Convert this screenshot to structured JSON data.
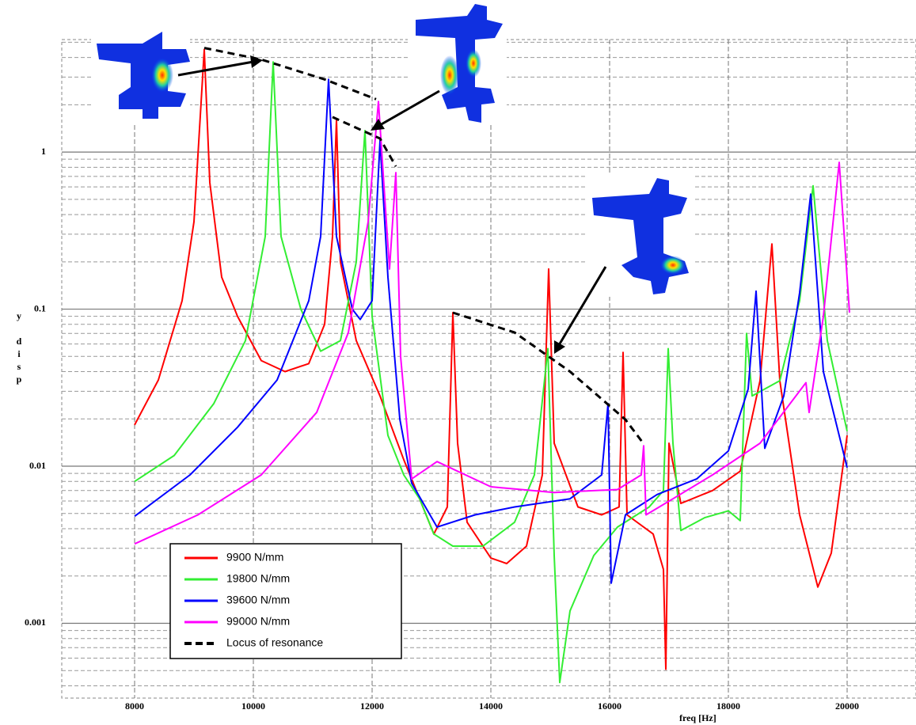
{
  "chart_data": {
    "type": "line",
    "x_label": "freq [Hz]",
    "y_label": "y disp",
    "y_log": true,
    "grid": true,
    "minor_grid": true,
    "legend": "lower left",
    "xlim": [
      6773,
      21160
    ],
    "ylim": [
      0.000334,
      5.2
    ],
    "xticks": [
      8000,
      10000,
      12000,
      14000,
      16000,
      18000,
      20000
    ],
    "yticks": [
      1,
      0.1,
      0.01,
      0.001
    ],
    "series": [
      {
        "name": "9900 N/mm",
        "color": "#ff0000",
        "dashed": false,
        "x": [
          8000,
          8400,
          8800,
          9000,
          9173,
          9267,
          9467,
          9733,
          10133,
          10533,
          10933,
          11200,
          11333,
          11400,
          11467,
          11733,
          12133,
          12533,
          12800,
          13040,
          13267,
          13360,
          13440,
          13600,
          14000,
          14267,
          14600,
          14867,
          14973,
          15067,
          15467,
          15867,
          16160,
          16227,
          16293,
          16733,
          16907,
          16947,
          17000,
          17200,
          17733,
          18200,
          18533,
          18733,
          18867,
          19200,
          19507,
          19733,
          20000
        ],
        "values": [
          0.0183,
          0.0354,
          0.113,
          0.36,
          4.5,
          0.64,
          0.16,
          0.09,
          0.047,
          0.04,
          0.045,
          0.08,
          0.29,
          1.6,
          0.2,
          0.063,
          0.028,
          0.011,
          0.0062,
          0.0037,
          0.0055,
          0.095,
          0.014,
          0.0044,
          0.0026,
          0.0024,
          0.0031,
          0.0088,
          0.18,
          0.014,
          0.0055,
          0.0049,
          0.0055,
          0.053,
          0.0049,
          0.0037,
          0.0022,
          0.00051,
          0.014,
          0.0058,
          0.007,
          0.0093,
          0.035,
          0.26,
          0.035,
          0.0049,
          0.0017,
          0.0028,
          0.0157
        ]
      },
      {
        "name": "19800 N/mm",
        "color": "#33ee33",
        "dashed": false,
        "x": [
          8000,
          8667,
          9333,
          9867,
          10200,
          10333,
          10467,
          10800,
          11133,
          11467,
          11733,
          11880,
          12000,
          12267,
          12533,
          12800,
          13040,
          13360,
          13867,
          14400,
          14733,
          14960,
          15067,
          15160,
          15333,
          15733,
          16133,
          16667,
          16907,
          16987,
          17067,
          17200,
          17600,
          18000,
          18200,
          18307,
          18400,
          18867,
          19200,
          19427,
          19667,
          20000
        ],
        "values": [
          0.008,
          0.0117,
          0.025,
          0.063,
          0.29,
          3.75,
          0.29,
          0.1,
          0.054,
          0.063,
          0.2,
          1.37,
          0.09,
          0.0157,
          0.0088,
          0.0062,
          0.0037,
          0.0031,
          0.0031,
          0.0044,
          0.0088,
          0.056,
          0.0027,
          0.00042,
          0.0012,
          0.0027,
          0.0041,
          0.0055,
          0.007,
          0.056,
          0.014,
          0.0039,
          0.0047,
          0.0052,
          0.0045,
          0.07,
          0.028,
          0.035,
          0.113,
          0.61,
          0.063,
          0.0167
        ]
      },
      {
        "name": "39600 N/mm",
        "color": "#0000ff",
        "dashed": false,
        "x": [
          8000,
          8933,
          9733,
          10400,
          10933,
          11133,
          11267,
          11400,
          11667,
          11800,
          12000,
          12133,
          12267,
          12467,
          12667,
          13093,
          13733,
          14400,
          15333,
          15867,
          15973,
          16027,
          16267,
          16800,
          17467,
          18000,
          18333,
          18467,
          18613,
          18933,
          19200,
          19387,
          19600,
          20000
        ],
        "values": [
          0.0048,
          0.0088,
          0.0177,
          0.0354,
          0.113,
          0.29,
          2.9,
          0.29,
          0.1,
          0.086,
          0.113,
          1.18,
          0.16,
          0.02,
          0.0078,
          0.0041,
          0.0049,
          0.0055,
          0.0062,
          0.0088,
          0.025,
          0.0018,
          0.0049,
          0.0066,
          0.0083,
          0.0125,
          0.031,
          0.13,
          0.013,
          0.028,
          0.127,
          0.54,
          0.04,
          0.0098
        ]
      },
      {
        "name": "99000 N/mm",
        "color": "#ff00ff",
        "dashed": false,
        "x": [
          8000,
          9067,
          10133,
          11067,
          11600,
          11933,
          12107,
          12240,
          12293,
          12400,
          12480,
          12667,
          13093,
          14000,
          15067,
          16133,
          16533,
          16573,
          16613,
          17067,
          17733,
          18533,
          19307,
          19360,
          19600,
          19867,
          20040
        ],
        "values": [
          0.0032,
          0.0049,
          0.0088,
          0.022,
          0.071,
          0.36,
          2.1,
          0.36,
          0.18,
          0.74,
          0.05,
          0.0083,
          0.0107,
          0.0074,
          0.0068,
          0.0071,
          0.0088,
          0.0135,
          0.0049,
          0.0062,
          0.0088,
          0.014,
          0.034,
          0.022,
          0.09,
          0.86,
          0.095
        ]
      },
      {
        "name": "Locus of resonance",
        "color": "#000000",
        "dashed": true,
        "x": [
          9173,
          10133,
          11200,
          12067,
          null,
          11333,
          12133,
          12400,
          null,
          13360,
          14400,
          15333,
          16267,
          16560
        ],
        "values": [
          4.6,
          3.88,
          2.9,
          2.17,
          null,
          1.67,
          1.22,
          0.81,
          null,
          0.095,
          0.071,
          0.04,
          0.0198,
          0.0141
        ]
      }
    ]
  }
}
